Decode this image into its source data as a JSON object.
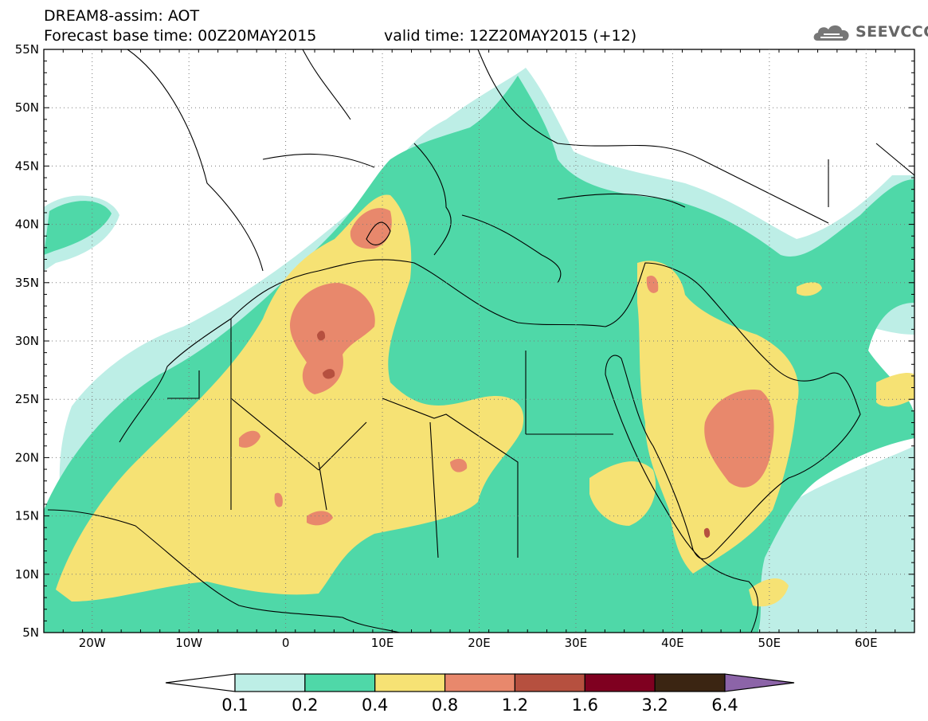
{
  "header": {
    "title_line1": "DREAM8-assim: AOT",
    "title_line2": "Forecast base time: 00Z20MAY2015",
    "valid_time": "valid time: 12Z20MAY2015 (+12)"
  },
  "logo": {
    "text": "SEEVCCC",
    "icon": "cloud-icon"
  },
  "map": {
    "lat_labels": [
      "55N",
      "50N",
      "45N",
      "40N",
      "35N",
      "30N",
      "25N",
      "20N",
      "15N",
      "10N",
      "5N"
    ],
    "lon_labels": [
      "20W",
      "10W",
      "0",
      "10E",
      "20E",
      "30E",
      "40E",
      "50E",
      "60E"
    ],
    "lat_range": [
      5,
      55
    ],
    "lon_range": [
      -25,
      65
    ],
    "grid": true,
    "colors": {
      "c01": "#bdeee6",
      "c02": "#4fd8a8",
      "c04": "#f6e274",
      "c08": "#e8886c",
      "c12": "#b6503f",
      "c16": "#7f0020",
      "c32": "#3b2512",
      "c64": "#8c64a8"
    }
  },
  "legend": {
    "labels": [
      "0.1",
      "0.2",
      "0.4",
      "0.8",
      "1.2",
      "1.6",
      "3.2",
      "6.4"
    ],
    "colors": [
      "#ffffff",
      "#bdeee6",
      "#4fd8a8",
      "#f6e274",
      "#e8886c",
      "#b6503f",
      "#7f0020",
      "#3b2512",
      "#8c64a8"
    ]
  }
}
